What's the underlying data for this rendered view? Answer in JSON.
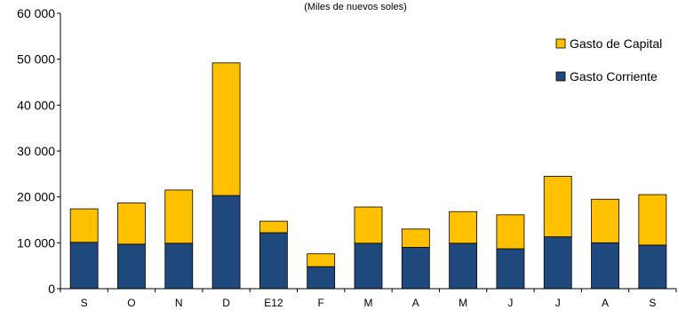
{
  "chart_data": {
    "type": "bar",
    "stacked": true,
    "subtitle": "(Miles de nuevos soles)",
    "categories": [
      "S",
      "O",
      "N",
      "D",
      "E12",
      "F",
      "M",
      "A",
      "M",
      "J",
      "J",
      "A",
      "S"
    ],
    "series": [
      {
        "name": "Gasto Corriente",
        "color": "#1F497D",
        "values": [
          10100,
          9700,
          9900,
          20300,
          12200,
          4800,
          9900,
          9000,
          9900,
          8700,
          11300,
          10000,
          9500
        ]
      },
      {
        "name": "Gasto de Capital",
        "color": "#FFC000",
        "values": [
          7300,
          9000,
          11600,
          28900,
          2500,
          2800,
          7900,
          4000,
          6900,
          7400,
          13200,
          9500,
          11000
        ]
      }
    ],
    "ylim": [
      0,
      60000
    ],
    "yticks": [
      0,
      10000,
      20000,
      30000,
      40000,
      50000,
      60000
    ],
    "ytick_labels": [
      "0",
      "10 000",
      "20 000",
      "30 000",
      "40 000",
      "50 000",
      "60 000"
    ],
    "legend": {
      "placement": "top-right",
      "entries": [
        "Gasto de Capital",
        "Gasto Corriente"
      ]
    },
    "grid": false
  }
}
